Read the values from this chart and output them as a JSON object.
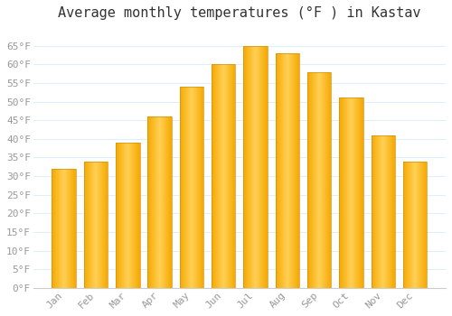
{
  "title": "Average monthly temperatures (°F ) in Kastav",
  "months": [
    "Jan",
    "Feb",
    "Mar",
    "Apr",
    "May",
    "Jun",
    "Jul",
    "Aug",
    "Sep",
    "Oct",
    "Nov",
    "Dec"
  ],
  "values": [
    32,
    34,
    39,
    46,
    54,
    60,
    65,
    63,
    58,
    51,
    41,
    34
  ],
  "bar_color_center": "#FFD055",
  "bar_color_edge": "#F5A800",
  "background_color": "#FFFFFF",
  "plot_bg_color": "#FFFFFF",
  "grid_color": "#DDEEFF",
  "ylim": [
    0,
    70
  ],
  "yticks": [
    0,
    5,
    10,
    15,
    20,
    25,
    30,
    35,
    40,
    45,
    50,
    55,
    60,
    65
  ],
  "title_fontsize": 11,
  "tick_fontsize": 8,
  "tick_color": "#999999",
  "title_color": "#333333",
  "font_family": "monospace",
  "bar_width": 0.75
}
